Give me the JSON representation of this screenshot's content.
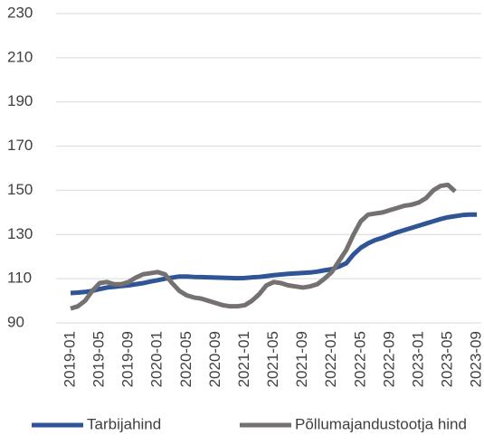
{
  "chart_data": {
    "type": "line",
    "categories": [
      "2019-01",
      null,
      null,
      null,
      "2019-05",
      null,
      null,
      null,
      "2019-09",
      null,
      null,
      null,
      "2020-01",
      null,
      null,
      null,
      "2020-05",
      null,
      null,
      null,
      "2020-09",
      null,
      null,
      null,
      "2021-01",
      null,
      null,
      null,
      "2021-05",
      null,
      null,
      null,
      "2021-09",
      null,
      null,
      null,
      "2022-01",
      null,
      null,
      null,
      "2022-05",
      null,
      null,
      null,
      "2022-09",
      null,
      null,
      null,
      "2023-01",
      null,
      null,
      null,
      "2023-05",
      null,
      null,
      null,
      "2023-09"
    ],
    "series": [
      {
        "name": "Tarbijahind",
        "color": "#2f5597",
        "values": [
          103.5,
          103.7,
          104,
          104.5,
          105.3,
          106,
          106.3,
          106.7,
          107,
          107.5,
          108,
          108.7,
          109.3,
          110,
          110.5,
          111,
          111,
          110.8,
          110.7,
          110.6,
          110.5,
          110.4,
          110.3,
          110.2,
          110.3,
          110.6,
          110.8,
          111.2,
          111.6,
          111.9,
          112.2,
          112.4,
          112.6,
          112.8,
          113.2,
          113.8,
          114.3,
          115.5,
          117,
          121,
          124,
          126,
          127.5,
          128.5,
          129.8,
          131,
          132,
          133,
          134,
          135,
          136,
          137,
          137.8,
          138.3,
          138.8,
          139,
          139
        ]
      },
      {
        "name": "Põllumajandustootja hind",
        "color": "#767171",
        "values": [
          96.5,
          97.5,
          100,
          104.5,
          108,
          108.5,
          107.5,
          107.5,
          108.5,
          110.5,
          112,
          112.5,
          113,
          112,
          108,
          104.5,
          102.5,
          101.5,
          101,
          100,
          99,
          98,
          97.5,
          97.5,
          98,
          100,
          103,
          107,
          108.5,
          108,
          107,
          106.5,
          106,
          106.5,
          107.5,
          110,
          113,
          118,
          123,
          130,
          136,
          139,
          139.5,
          140,
          141,
          142,
          143,
          143.5,
          144.5,
          146.5,
          150,
          152,
          152.5,
          149.5,
          null,
          null,
          null
        ]
      }
    ],
    "ylim": [
      90,
      230
    ],
    "yticks": [
      90,
      110,
      130,
      150,
      170,
      190,
      210,
      230
    ],
    "grid": true,
    "legend": "bottom"
  }
}
